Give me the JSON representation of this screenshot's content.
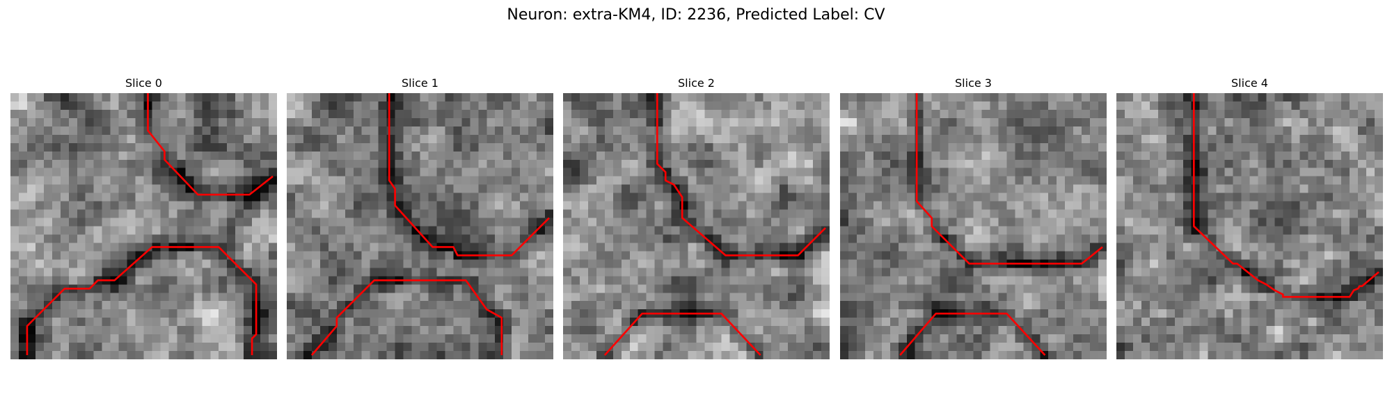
{
  "figure": {
    "title": "Neuron: extra-KM4, ID: 2236, Predicted Label: CV"
  },
  "trace_color": "#ff0000",
  "grid_size": 32,
  "slices": [
    {
      "title": "Slice 0",
      "traces": [
        [
          [
            16.5,
            0
          ],
          [
            16.5,
            4.5
          ],
          [
            18.5,
            7
          ],
          [
            18.5,
            8
          ],
          [
            22.5,
            12.2
          ],
          [
            28.7,
            12.2
          ],
          [
            31.5,
            10
          ]
        ],
        [
          [
            2,
            31.5
          ],
          [
            2,
            28
          ],
          [
            6.5,
            23.5
          ],
          [
            9.5,
            23.5
          ],
          [
            10.5,
            22.5
          ],
          [
            12.5,
            22.5
          ],
          [
            17,
            18.5
          ],
          [
            25,
            18.5
          ],
          [
            29.5,
            23
          ],
          [
            29.5,
            29
          ],
          [
            29,
            29.5
          ],
          [
            29,
            31.5
          ]
        ]
      ]
    },
    {
      "title": "Slice 1",
      "traces": [
        [
          [
            12.3,
            0
          ],
          [
            12.3,
            10.5
          ],
          [
            13,
            11.5
          ],
          [
            13,
            13.5
          ],
          [
            17.5,
            18.5
          ],
          [
            20,
            18.5
          ],
          [
            20.5,
            19.5
          ],
          [
            27,
            19.5
          ],
          [
            31.5,
            15
          ]
        ],
        [
          [
            3,
            31.5
          ],
          [
            6,
            28
          ],
          [
            6,
            27
          ],
          [
            10.5,
            22.5
          ],
          [
            21.5,
            22.5
          ],
          [
            24,
            26
          ],
          [
            25.8,
            27
          ],
          [
            25.8,
            31.5
          ]
        ]
      ]
    },
    {
      "title": "Slice 2",
      "traces": [
        [
          [
            11.3,
            0
          ],
          [
            11.3,
            8.5
          ],
          [
            12.3,
            9.5
          ],
          [
            12.3,
            10.5
          ],
          [
            13.3,
            11
          ],
          [
            14.3,
            12.5
          ],
          [
            14.3,
            15
          ],
          [
            19.5,
            19.5
          ],
          [
            28.2,
            19.5
          ],
          [
            31.5,
            16.2
          ]
        ],
        [
          [
            5,
            31.5
          ],
          [
            9.5,
            26.5
          ],
          [
            19,
            26.5
          ],
          [
            23.7,
            31.5
          ]
        ]
      ]
    },
    {
      "title": "Slice 3",
      "traces": [
        [
          [
            9.2,
            0
          ],
          [
            9.2,
            13
          ],
          [
            11,
            15
          ],
          [
            11,
            16
          ],
          [
            15.5,
            20.5
          ],
          [
            29,
            20.5
          ],
          [
            31.5,
            18.5
          ]
        ],
        [
          [
            7.2,
            31.5
          ],
          [
            11.5,
            26.5
          ],
          [
            20,
            26.5
          ],
          [
            24.6,
            31.5
          ]
        ]
      ]
    },
    {
      "title": "Slice 4",
      "traces": [
        [
          [
            9.3,
            0
          ],
          [
            9.3,
            16
          ],
          [
            14,
            20.5
          ],
          [
            14.5,
            20.5
          ],
          [
            17,
            22.5
          ],
          [
            18,
            23
          ],
          [
            19,
            23.7
          ],
          [
            20,
            24.2
          ],
          [
            20,
            24.5
          ],
          [
            28,
            24.5
          ],
          [
            28.5,
            23.7
          ],
          [
            29,
            23.5
          ],
          [
            29.2,
            23.2
          ],
          [
            29.5,
            23.2
          ],
          [
            31.5,
            21.5
          ]
        ]
      ]
    }
  ]
}
